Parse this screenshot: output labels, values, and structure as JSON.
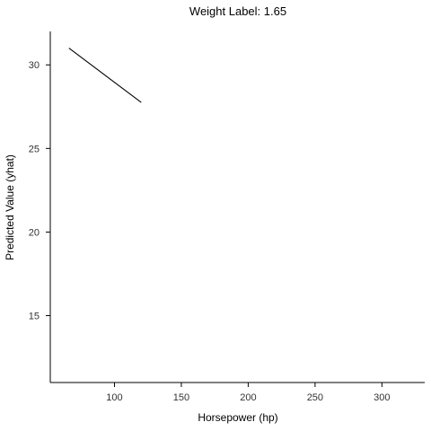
{
  "chart_data": {
    "type": "line",
    "title": "Weight Label: 1.65",
    "xlabel": "Horsepower (hp)",
    "ylabel": "Predicted Value (yhat)",
    "xlim": [
      52,
      332
    ],
    "ylim": [
      11,
      32
    ],
    "x_ticks": [
      100,
      150,
      200,
      250,
      300
    ],
    "y_ticks": [
      15,
      20,
      25,
      30
    ],
    "grid": false,
    "series": [
      {
        "x": [
          66,
          120
        ],
        "y": [
          31.0,
          27.75
        ],
        "color": "#000000"
      }
    ]
  }
}
